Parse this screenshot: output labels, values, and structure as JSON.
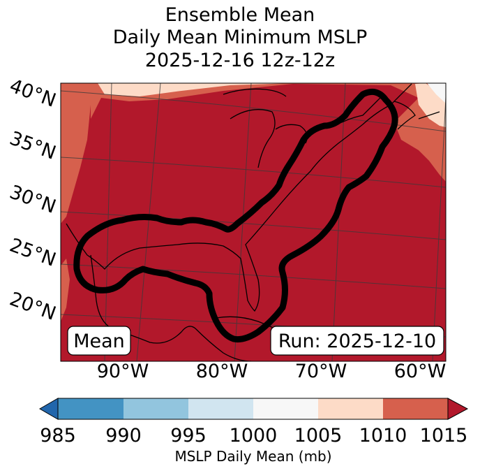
{
  "title": {
    "line1": "Ensemble Mean",
    "line2": "Daily Mean Minimum MSLP",
    "line3": "2025-12-16 12z-12z"
  },
  "map": {
    "lat_labels": [
      "40°N",
      "35°N",
      "30°N",
      "25°N",
      "20°N"
    ],
    "lon_labels": [
      "90°W",
      "80°W",
      "70°W",
      "60°W"
    ],
    "left_box": "Mean",
    "right_box": "Run: 2025-12-10",
    "colors": {
      "c1010_1015": "#b2182b",
      "c1005_1010": "#d6604d",
      "c1000_1005": "#fddbc7",
      "c995_1000": "#f7f7f7"
    }
  },
  "colorbar": {
    "ticks": [
      "985",
      "990",
      "995",
      "1000",
      "1005",
      "1010",
      "1015"
    ],
    "label": "MSLP Daily Mean (mb)",
    "colors": [
      "#2166ac",
      "#4393c3",
      "#92c5de",
      "#d1e5f0",
      "#f7f7f7",
      "#fddbc7",
      "#d6604d",
      "#b2182b"
    ]
  }
}
